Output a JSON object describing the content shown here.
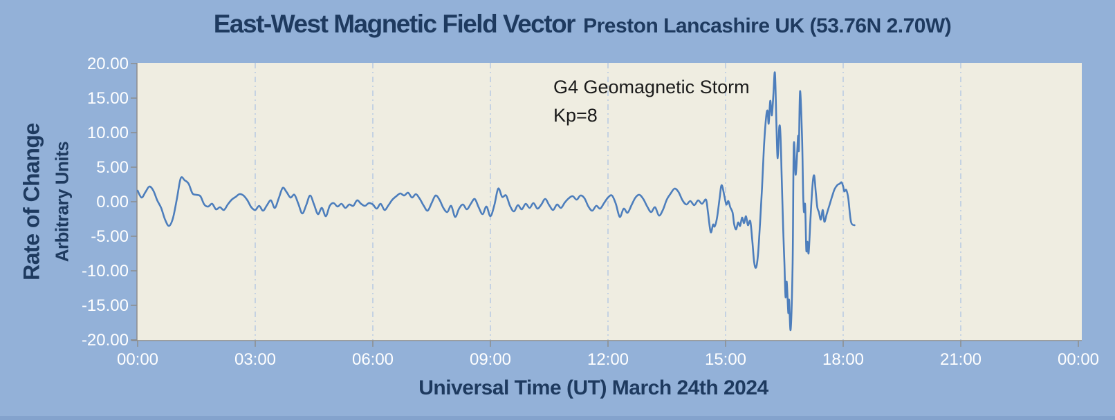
{
  "header": {
    "title": "East-West Magnetic Field Vector",
    "subtitle": "Preston Lancashire UK (53.76N 2.70W)"
  },
  "colors": {
    "background": "#93b1d8",
    "bottom_edge": "#84a3cd",
    "plot_background": "#efede1",
    "line": "#4d7ebc",
    "grid": "#b3c7e3",
    "axis": "#8c8c8c",
    "title_text": "#1e3a5f",
    "tick_text": "#ffffff",
    "annotation_text": "#1b1b1b"
  },
  "chart_data": {
    "type": "line",
    "title": "East-West Magnetic Field Vector",
    "subtitle": "Preston Lancashire UK (53.76N 2.70W)",
    "xlabel": "Universal Time (UT) March 24th 2024",
    "ylabel_line1": "Rate of Change",
    "ylabel_line2": "Arbitrary Units",
    "xlim_hours": [
      0,
      24
    ],
    "ylim": [
      -20,
      20
    ],
    "x_tick_labels": [
      "00:00",
      "03:00",
      "06:00",
      "09:00",
      "12:00",
      "15:00",
      "18:00",
      "21:00",
      "00:00"
    ],
    "x_tick_step_hours": 3,
    "y_tick_labels": [
      "20.00",
      "15.00",
      "10.00",
      "5.00",
      "0.00",
      "-5.00",
      "-10.00",
      "-15.00",
      "-20.00"
    ],
    "y_tick_step": 5,
    "grid": "vertical dash-dot gridlines at 3-hour intervals",
    "legend": "none",
    "series_name": "East-West magnetic field rate of change",
    "annotation": {
      "line1": "G4 Geomagnetic Storm",
      "line2": "Kp=8"
    },
    "points_hours_value": [
      [
        0,
        1.6
      ],
      [
        0.1,
        0.6
      ],
      [
        0.2,
        1.4
      ],
      [
        0.3,
        2.2
      ],
      [
        0.4,
        1.6
      ],
      [
        0.5,
        0.2
      ],
      [
        0.6,
        -0.9
      ],
      [
        0.7,
        -2.6
      ],
      [
        0.8,
        -3.5
      ],
      [
        0.9,
        -2.4
      ],
      [
        1,
        0.4
      ],
      [
        1.1,
        3.4
      ],
      [
        1.2,
        3.1
      ],
      [
        1.3,
        2.6
      ],
      [
        1.4,
        1.2
      ],
      [
        1.5,
        1
      ],
      [
        1.6,
        0.8
      ],
      [
        1.7,
        -0.4
      ],
      [
        1.8,
        -0.7
      ],
      [
        1.9,
        -0.3
      ],
      [
        2,
        -1.1
      ],
      [
        2.1,
        -0.8
      ],
      [
        2.2,
        -1.2
      ],
      [
        2.3,
        -0.4
      ],
      [
        2.4,
        0.3
      ],
      [
        2.5,
        0.7
      ],
      [
        2.6,
        1.1
      ],
      [
        2.7,
        0.9
      ],
      [
        2.8,
        0.2
      ],
      [
        2.9,
        -0.8
      ],
      [
        3,
        -1.2
      ],
      [
        3.1,
        -0.6
      ],
      [
        3.2,
        -1.3
      ],
      [
        3.3,
        -0.5
      ],
      [
        3.4,
        0.2
      ],
      [
        3.5,
        -0.9
      ],
      [
        3.6,
        0.5
      ],
      [
        3.7,
        2
      ],
      [
        3.8,
        1.4
      ],
      [
        3.9,
        0.6
      ],
      [
        4,
        1
      ],
      [
        4.1,
        -0.3
      ],
      [
        4.2,
        -1.7
      ],
      [
        4.3,
        -0.5
      ],
      [
        4.4,
        0.9
      ],
      [
        4.5,
        -0.4
      ],
      [
        4.6,
        -1.8
      ],
      [
        4.7,
        -0.9
      ],
      [
        4.8,
        -2.1
      ],
      [
        4.9,
        -0.6
      ],
      [
        5,
        -0.2
      ],
      [
        5.1,
        -0.7
      ],
      [
        5.2,
        -0.3
      ],
      [
        5.3,
        -0.9
      ],
      [
        5.4,
        -0.4
      ],
      [
        5.5,
        -0.6
      ],
      [
        5.6,
        0.2
      ],
      [
        5.7,
        -0.3
      ],
      [
        5.8,
        -0.6
      ],
      [
        5.9,
        -0.2
      ],
      [
        6,
        -0.4
      ],
      [
        6.1,
        -1
      ],
      [
        6.2,
        -0.3
      ],
      [
        6.3,
        -1.2
      ],
      [
        6.4,
        -0.5
      ],
      [
        6.5,
        0.3
      ],
      [
        6.6,
        0.8
      ],
      [
        6.7,
        1.2
      ],
      [
        6.8,
        0.9
      ],
      [
        6.9,
        1.3
      ],
      [
        7,
        0.6
      ],
      [
        7.1,
        1.1
      ],
      [
        7.2,
        0.4
      ],
      [
        7.3,
        -0.6
      ],
      [
        7.4,
        -1.3
      ],
      [
        7.5,
        -0.2
      ],
      [
        7.6,
        0.9
      ],
      [
        7.7,
        0.3
      ],
      [
        7.8,
        -0.9
      ],
      [
        7.9,
        -1.5
      ],
      [
        8,
        -0.6
      ],
      [
        8.1,
        -2.2
      ],
      [
        8.2,
        -1
      ],
      [
        8.3,
        -0.4
      ],
      [
        8.4,
        -1.1
      ],
      [
        8.5,
        -0.3
      ],
      [
        8.6,
        0.4
      ],
      [
        8.7,
        -0.8
      ],
      [
        8.8,
        -1.8
      ],
      [
        8.9,
        -0.7
      ],
      [
        9,
        -2.1
      ],
      [
        9.1,
        -0.5
      ],
      [
        9.2,
        1.9
      ],
      [
        9.3,
        0.7
      ],
      [
        9.4,
        0.9
      ],
      [
        9.5,
        -0.6
      ],
      [
        9.6,
        -1.4
      ],
      [
        9.7,
        -0.5
      ],
      [
        9.8,
        -1.1
      ],
      [
        9.9,
        -0.3
      ],
      [
        10,
        -0.9
      ],
      [
        10.1,
        -0.2
      ],
      [
        10.2,
        -1
      ],
      [
        10.3,
        -0.4
      ],
      [
        10.4,
        0.4
      ],
      [
        10.5,
        -0.5
      ],
      [
        10.6,
        -1.2
      ],
      [
        10.7,
        -0.4
      ],
      [
        10.8,
        -0.9
      ],
      [
        10.9,
        -0.1
      ],
      [
        11,
        0.5
      ],
      [
        11.1,
        0.8
      ],
      [
        11.2,
        0.3
      ],
      [
        11.3,
        0.9
      ],
      [
        11.4,
        0.5
      ],
      [
        11.5,
        -0.7
      ],
      [
        11.6,
        -1.3
      ],
      [
        11.7,
        -0.6
      ],
      [
        11.8,
        -1
      ],
      [
        11.9,
        -0.2
      ],
      [
        12,
        0.6
      ],
      [
        12.1,
        0.9
      ],
      [
        12.2,
        -0.3
      ],
      [
        12.3,
        -2.2
      ],
      [
        12.4,
        -1
      ],
      [
        12.5,
        -1.6
      ],
      [
        12.6,
        -0.5
      ],
      [
        12.7,
        0.6
      ],
      [
        12.8,
        1
      ],
      [
        12.9,
        0.4
      ],
      [
        13,
        -0.7
      ],
      [
        13.1,
        -1.5
      ],
      [
        13.2,
        -0.8
      ],
      [
        13.3,
        -2
      ],
      [
        13.4,
        -1.2
      ],
      [
        13.5,
        0.3
      ],
      [
        13.6,
        1.2
      ],
      [
        13.7,
        1.9
      ],
      [
        13.8,
        1.4
      ],
      [
        13.9,
        0.2
      ],
      [
        14,
        -0.4
      ],
      [
        14.1,
        0.1
      ],
      [
        14.2,
        -0.5
      ],
      [
        14.3,
        0.2
      ],
      [
        14.4,
        -0.3
      ],
      [
        14.5,
        0.3
      ],
      [
        14.55,
        -1.5
      ],
      [
        14.62,
        -4.4
      ],
      [
        14.68,
        -3.3
      ],
      [
        14.72,
        -3.6
      ],
      [
        14.78,
        -2.4
      ],
      [
        14.85,
        0.6
      ],
      [
        14.9,
        2.4
      ],
      [
        14.97,
        0.8
      ],
      [
        15.02,
        -0.4
      ],
      [
        15.07,
        0.1
      ],
      [
        15.12,
        -0.8
      ],
      [
        15.18,
        -1.6
      ],
      [
        15.22,
        -3.3
      ],
      [
        15.27,
        -4
      ],
      [
        15.32,
        -3
      ],
      [
        15.37,
        -3.5
      ],
      [
        15.42,
        -2.3
      ],
      [
        15.47,
        -3.1
      ],
      [
        15.52,
        -2.1
      ],
      [
        15.57,
        -3.4
      ],
      [
        15.63,
        -2.8
      ],
      [
        15.68,
        -5.5
      ],
      [
        15.73,
        -8.8
      ],
      [
        15.78,
        -9.5
      ],
      [
        15.83,
        -7.5
      ],
      [
        15.88,
        -3
      ],
      [
        15.93,
        2
      ],
      [
        15.98,
        8
      ],
      [
        16.03,
        12
      ],
      [
        16.07,
        13.2
      ],
      [
        16.1,
        11.3
      ],
      [
        16.14,
        14.6
      ],
      [
        16.18,
        12.5
      ],
      [
        16.22,
        15.5
      ],
      [
        16.26,
        18.6
      ],
      [
        16.3,
        10.5
      ],
      [
        16.33,
        6.3
      ],
      [
        16.37,
        10.8
      ],
      [
        16.4,
        9.8
      ],
      [
        16.43,
        4
      ],
      [
        16.47,
        -4
      ],
      [
        16.5,
        -8.7
      ],
      [
        16.53,
        -13.8
      ],
      [
        16.56,
        -11.6
      ],
      [
        16.6,
        -16.1
      ],
      [
        16.62,
        -14.2
      ],
      [
        16.66,
        -18.5
      ],
      [
        16.71,
        -9.2
      ],
      [
        16.74,
        8.2
      ],
      [
        16.79,
        3.9
      ],
      [
        16.85,
        9.5
      ],
      [
        16.87,
        7.5
      ],
      [
        16.9,
        16
      ],
      [
        16.95,
        9.5
      ],
      [
        16.98,
        1
      ],
      [
        17,
        -1.5
      ],
      [
        17.03,
        -0.5
      ],
      [
        17.06,
        -7
      ],
      [
        17.09,
        -5.8
      ],
      [
        17.12,
        -7.4
      ],
      [
        17.17,
        -2
      ],
      [
        17.22,
        2.5
      ],
      [
        17.26,
        3.8
      ],
      [
        17.3,
        1.5
      ],
      [
        17.34,
        -0.8
      ],
      [
        17.38,
        -1.5
      ],
      [
        17.43,
        -2.6
      ],
      [
        17.48,
        -1.2
      ],
      [
        17.52,
        -2.9
      ],
      [
        17.58,
        -1.8
      ],
      [
        17.65,
        -0.5
      ],
      [
        17.72,
        0.8
      ],
      [
        17.78,
        1.8
      ],
      [
        17.85,
        2.4
      ],
      [
        17.91,
        2.6
      ],
      [
        17.96,
        2.8
      ],
      [
        18,
        2.2
      ],
      [
        18.03,
        1.5
      ],
      [
        18.08,
        1.7
      ],
      [
        18.13,
        0.5
      ],
      [
        18.2,
        -2.9
      ],
      [
        18.29,
        -3.4
      ]
    ]
  }
}
